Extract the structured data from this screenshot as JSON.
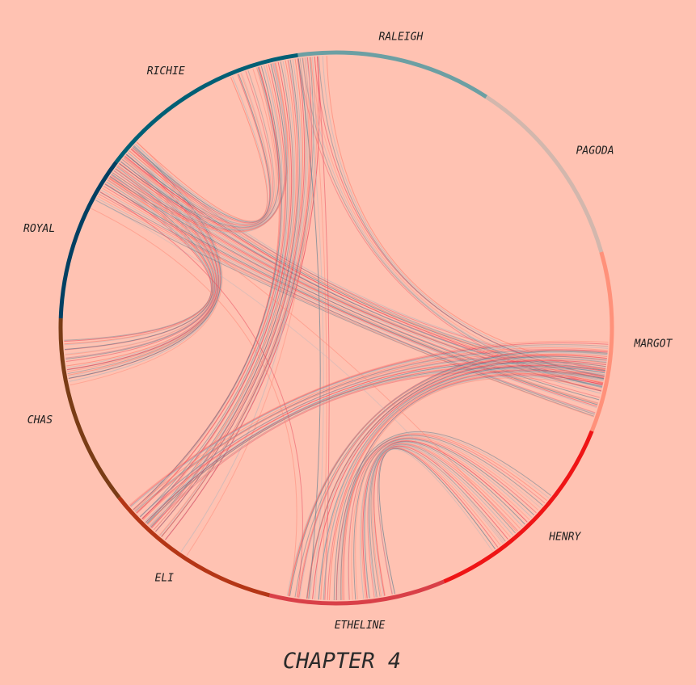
{
  "chart_data": {
    "type": "chord",
    "title": "CHAPTER 4",
    "background": "#ffc2b2",
    "link_colors": [
      "#e8465a",
      "#5f7f90",
      "#b3b7bd",
      "#ff7f6e"
    ],
    "nodes": [
      {
        "name": "RALEIGH",
        "arc_deg": [
          -8,
          33
        ],
        "color": "#6c9fa3"
      },
      {
        "name": "PAGODA",
        "arc_deg": [
          33,
          74
        ],
        "color": "#d2b7ad"
      },
      {
        "name": "MARGOT",
        "arc_deg": [
          74,
          112
        ],
        "color": "#ff917a"
      },
      {
        "name": "HENRY",
        "arc_deg": [
          112,
          157
        ],
        "color": "#ef1516"
      },
      {
        "name": "ETHELINE",
        "arc_deg": [
          157,
          194
        ],
        "color": "#d94048"
      },
      {
        "name": "ELI",
        "arc_deg": [
          194,
          232
        ],
        "color": "#b43616"
      },
      {
        "name": "CHAS",
        "arc_deg": [
          232,
          272
        ],
        "color": "#7a3c16"
      },
      {
        "name": "ROYAL",
        "arc_deg": [
          272,
          307
        ],
        "color": "#003f62"
      },
      {
        "name": "RICHIE",
        "arc_deg": [
          307,
          352
        ],
        "color": "#005f75"
      }
    ],
    "link_groups": [
      {
        "source": "ROYAL",
        "source_deg": [
          302,
          313
        ],
        "target": "CHAS",
        "target_deg": [
          257,
          268
        ],
        "count": 24
      },
      {
        "source": "ROYAL",
        "source_deg": [
          298,
          312
        ],
        "target": "MARGOT",
        "target_deg": [
          98,
          110
        ],
        "count": 30
      },
      {
        "source": "ROYAL",
        "source_deg": [
          303,
          313
        ],
        "target": "RICHIE",
        "target_deg": [
          336,
          348
        ],
        "count": 18
      },
      {
        "source": "RICHIE",
        "source_deg": [
          343,
          356
        ],
        "target": "ELI",
        "target_deg": [
          218,
          229
        ],
        "count": 26
      },
      {
        "source": "RALEIGH",
        "source_deg": [
          352,
          358
        ],
        "target": "MARGOT",
        "target_deg": [
          98,
          104
        ],
        "count": 8
      },
      {
        "source": "RALEIGH",
        "source_deg": [
          352,
          356
        ],
        "target": "ETHELINE",
        "target_deg": [
          182,
          186
        ],
        "count": 4
      },
      {
        "source": "RALEIGH",
        "source_deg": [
          350,
          353
        ],
        "target": "ELI",
        "target_deg": [
          213,
          215
        ],
        "count": 2
      },
      {
        "source": "MARGOT",
        "source_deg": [
          93,
          102
        ],
        "target": "ELI",
        "target_deg": [
          222,
          230
        ],
        "count": 22
      },
      {
        "source": "MARGOT",
        "source_deg": [
          95,
          103
        ],
        "target": "ETHELINE",
        "target_deg": [
          178,
          192
        ],
        "count": 24
      },
      {
        "source": "HENRY",
        "source_deg": [
          128,
          145
        ],
        "target": "ETHELINE",
        "target_deg": [
          166,
          181
        ],
        "count": 26
      },
      {
        "source": "ROYAL",
        "source_deg": [
          298,
          303
        ],
        "target": "HENRY",
        "target_deg": [
          138,
          142
        ],
        "count": 2
      },
      {
        "source": "ROYAL",
        "source_deg": [
          296,
          300
        ],
        "target": "ETHELINE",
        "target_deg": [
          188,
          190
        ],
        "count": 2
      }
    ]
  }
}
